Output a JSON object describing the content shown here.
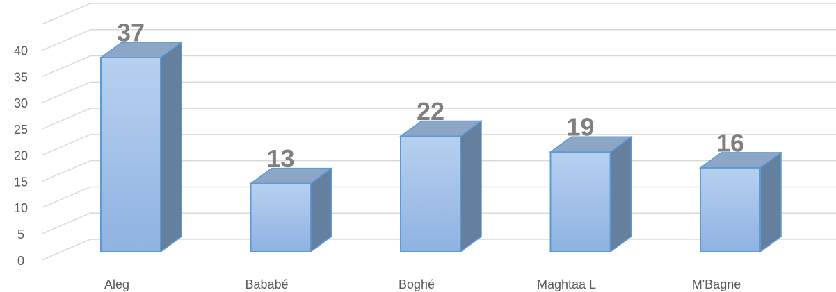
{
  "chart_data": {
    "type": "bar3d",
    "categories": [
      "Aleg",
      "Bababé",
      "Boghé",
      "Maghtaa L",
      "M'Bagne"
    ],
    "values": [
      37,
      13,
      22,
      19,
      16
    ],
    "color": "#a4c2ea",
    "ylim": [
      0,
      45
    ],
    "yticks": [
      0,
      5,
      10,
      15,
      20,
      25,
      30,
      35,
      40
    ],
    "grid": true
  }
}
